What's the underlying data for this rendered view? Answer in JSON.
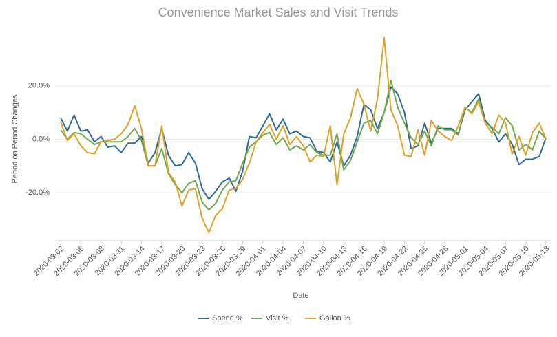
{
  "chart_data": {
    "type": "line",
    "title": "Convenience Market Sales and Visit Trends",
    "x_label": "Date",
    "y_label": "Period on Period Changes",
    "categories": [
      "2020-03-02",
      null,
      null,
      "2020-03-05",
      null,
      null,
      "2020-03-08",
      null,
      null,
      "2020-03-11",
      null,
      null,
      "2020-03-14",
      null,
      null,
      "2020-03-17",
      null,
      null,
      "2020-03-20",
      null,
      null,
      "2020-03-23",
      null,
      null,
      "2020-03-26",
      null,
      null,
      "2020-03-29",
      null,
      null,
      "2020-04-01",
      null,
      null,
      "2020-04-04",
      null,
      null,
      "2020-04-07",
      null,
      null,
      "2020-04-10",
      null,
      null,
      "2020-04-13",
      null,
      null,
      "2020-04-16",
      null,
      null,
      "2020-04-19",
      null,
      null,
      "2020-04-22",
      null,
      null,
      "2020-04-25",
      null,
      null,
      "2020-04-28",
      null,
      null,
      "2020-05-01",
      null,
      null,
      "2020-05-04",
      null,
      null,
      "2020-05-07",
      null,
      null,
      "2020-05-10",
      null,
      null,
      "2020-05-13"
    ],
    "series": [
      {
        "name": "Spend %",
        "color": "#2e6b97",
        "values": [
          8,
          3,
          9,
          3,
          3.5,
          -1,
          1,
          -3,
          -2.5,
          -5,
          -1.5,
          -1.5,
          1,
          -9,
          -5,
          4,
          -6,
          -10,
          -9.5,
          -5,
          -9,
          -18.5,
          -22.5,
          -19.5,
          -16,
          -14.5,
          -19.5,
          -12,
          1,
          0.5,
          5,
          9.5,
          3.5,
          7.5,
          2,
          3,
          1,
          0.5,
          -4.5,
          -5,
          -8.5,
          -1,
          -10,
          -6,
          1,
          13,
          11,
          4,
          10,
          19.5,
          17,
          10,
          -3.5,
          -2.5,
          6,
          -1.5,
          4,
          4,
          4,
          2,
          11,
          14,
          17,
          7,
          4,
          -1,
          2,
          -2,
          -9.5,
          -7.5,
          -7.5,
          -6.5,
          0.5
        ]
      },
      {
        "name": "Visit %",
        "color": "#70a84f",
        "values": [
          3.5,
          0,
          2.5,
          2,
          0,
          -2,
          -1,
          -1,
          -1,
          -1,
          1,
          4,
          -0.5,
          -10,
          -10,
          -3.5,
          -13,
          -17,
          -20,
          -16.5,
          -15.5,
          -23.5,
          -26.5,
          -24,
          -19,
          -16,
          -15.5,
          -9,
          -3,
          -1,
          1.5,
          2.5,
          -2,
          0.5,
          -4,
          -2.5,
          -4,
          -2,
          -5,
          -6,
          -6,
          2,
          -11.5,
          -8,
          -1,
          6,
          7,
          2,
          10,
          22,
          12,
          6,
          0.5,
          -2,
          3,
          -2.5,
          5,
          3.5,
          3.5,
          1.5,
          12,
          10,
          15,
          6,
          4.5,
          2,
          8,
          5,
          -4,
          -2,
          -4,
          3,
          0
        ]
      },
      {
        "name": "Gallon %",
        "color": "#d9a22b",
        "values": [
          6.5,
          -0.5,
          2,
          -2.5,
          -5,
          -5.5,
          -1,
          -0.5,
          0,
          2,
          5.5,
          12.5,
          4,
          -10,
          -10,
          5,
          -12.5,
          -16,
          -25,
          -19,
          -18.5,
          -29.5,
          -35,
          -28.5,
          -26,
          -19,
          -18.5,
          -15,
          -9,
          -1,
          2.5,
          5.5,
          0,
          5,
          -2,
          1,
          -2.5,
          -8.5,
          -6,
          -6.5,
          5,
          -17,
          2,
          8,
          19,
          13,
          3,
          15,
          38,
          11,
          5,
          -6,
          -6.5,
          3.5,
          -6,
          7,
          3,
          1,
          -0.5,
          5,
          12,
          9.5,
          14,
          6,
          2,
          9,
          6,
          -5.5,
          1,
          -6,
          2.5,
          6,
          0
        ]
      }
    ],
    "ylim": [
      -38,
      40
    ],
    "yticks": [
      {
        "value": -20,
        "label": "-20.0%"
      },
      {
        "value": 0,
        "label": "0.0%"
      },
      {
        "value": 20,
        "label": "20.0%"
      }
    ],
    "grid": true,
    "legend": "bottom"
  }
}
